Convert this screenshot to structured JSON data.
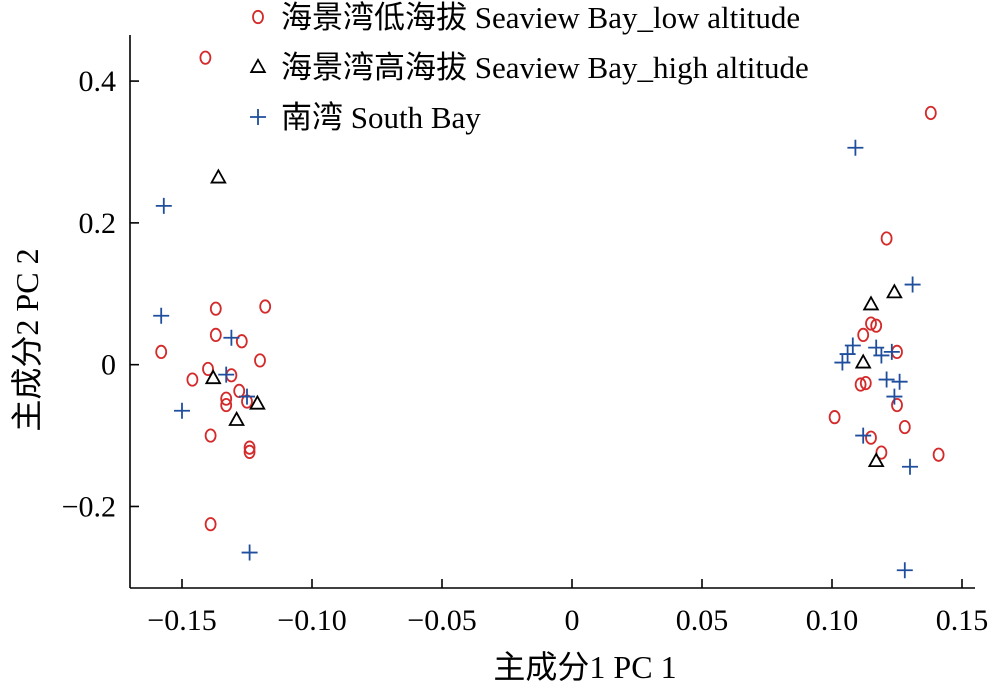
{
  "chart_data": {
    "type": "scatter",
    "title": "",
    "xlabel": "主成分1 PC 1",
    "ylabel": "主成分2 PC 2",
    "xlim": [
      -0.17,
      0.155
    ],
    "ylim": [
      -0.315,
      0.465
    ],
    "x_ticks": [
      {
        "value": -0.15,
        "label": "−0.15"
      },
      {
        "value": -0.1,
        "label": "−0.10"
      },
      {
        "value": -0.05,
        "label": "−0.05"
      },
      {
        "value": 0,
        "label": "0"
      },
      {
        "value": 0.05,
        "label": "0.05"
      },
      {
        "value": 0.1,
        "label": "0.10"
      },
      {
        "value": 0.15,
        "label": "0.15"
      }
    ],
    "y_ticks": [
      {
        "value": -0.2,
        "label": "−0.2"
      },
      {
        "value": 0,
        "label": "0"
      },
      {
        "value": 0.2,
        "label": "0.2"
      },
      {
        "value": 0.4,
        "label": "0.4"
      }
    ],
    "grid": false,
    "legend_position": "top-left",
    "series": [
      {
        "name": "海景湾低海拔 Seaview Bay_low altitude",
        "marker": "circle",
        "color": "#d42a2a",
        "points": [
          [
            -0.141,
            0.433
          ],
          [
            -0.137,
            0.079
          ],
          [
            -0.118,
            0.082
          ],
          [
            -0.137,
            0.042
          ],
          [
            -0.127,
            0.033
          ],
          [
            -0.158,
            0.018
          ],
          [
            -0.12,
            0.006
          ],
          [
            -0.14,
            -0.006
          ],
          [
            -0.131,
            -0.015
          ],
          [
            -0.146,
            -0.021
          ],
          [
            -0.128,
            -0.037
          ],
          [
            -0.133,
            -0.048
          ],
          [
            -0.125,
            -0.052
          ],
          [
            -0.133,
            -0.057
          ],
          [
            -0.139,
            -0.1
          ],
          [
            -0.124,
            -0.117
          ],
          [
            -0.124,
            -0.123
          ],
          [
            -0.139,
            -0.225
          ],
          [
            0.138,
            0.355
          ],
          [
            0.121,
            0.178
          ],
          [
            0.117,
            0.055
          ],
          [
            0.115,
            0.058
          ],
          [
            0.112,
            0.042
          ],
          [
            0.125,
            0.018
          ],
          [
            0.113,
            -0.026
          ],
          [
            0.111,
            -0.028
          ],
          [
            0.125,
            -0.057
          ],
          [
            0.101,
            -0.074
          ],
          [
            0.128,
            -0.088
          ],
          [
            0.115,
            -0.103
          ],
          [
            0.119,
            -0.124
          ],
          [
            0.141,
            -0.127
          ]
        ]
      },
      {
        "name": "海景湾高海拔 Seaview Bay_high altitude",
        "marker": "triangle",
        "color": "#000000",
        "points": [
          [
            -0.136,
            0.264
          ],
          [
            -0.138,
            -0.019
          ],
          [
            -0.121,
            -0.055
          ],
          [
            -0.129,
            -0.078
          ],
          [
            0.115,
            0.085
          ],
          [
            0.124,
            0.102
          ],
          [
            0.112,
            0.003
          ],
          [
            0.117,
            -0.136
          ]
        ]
      },
      {
        "name": "南湾 South Bay",
        "marker": "plus",
        "color": "#1f4e9c",
        "points": [
          [
            -0.157,
            0.224
          ],
          [
            -0.158,
            0.069
          ],
          [
            -0.131,
            0.038
          ],
          [
            -0.133,
            -0.014
          ],
          [
            -0.125,
            -0.045
          ],
          [
            -0.15,
            -0.065
          ],
          [
            -0.124,
            -0.265
          ],
          [
            0.109,
            0.306
          ],
          [
            0.131,
            0.113
          ],
          [
            0.108,
            0.027
          ],
          [
            0.106,
            0.015
          ],
          [
            0.104,
            0.003
          ],
          [
            0.117,
            0.024
          ],
          [
            0.119,
            0.013
          ],
          [
            0.123,
            0.018
          ],
          [
            0.121,
            -0.021
          ],
          [
            0.126,
            -0.024
          ],
          [
            0.124,
            -0.045
          ],
          [
            0.112,
            -0.1
          ],
          [
            0.13,
            -0.144
          ],
          [
            0.128,
            -0.29
          ]
        ]
      }
    ]
  }
}
